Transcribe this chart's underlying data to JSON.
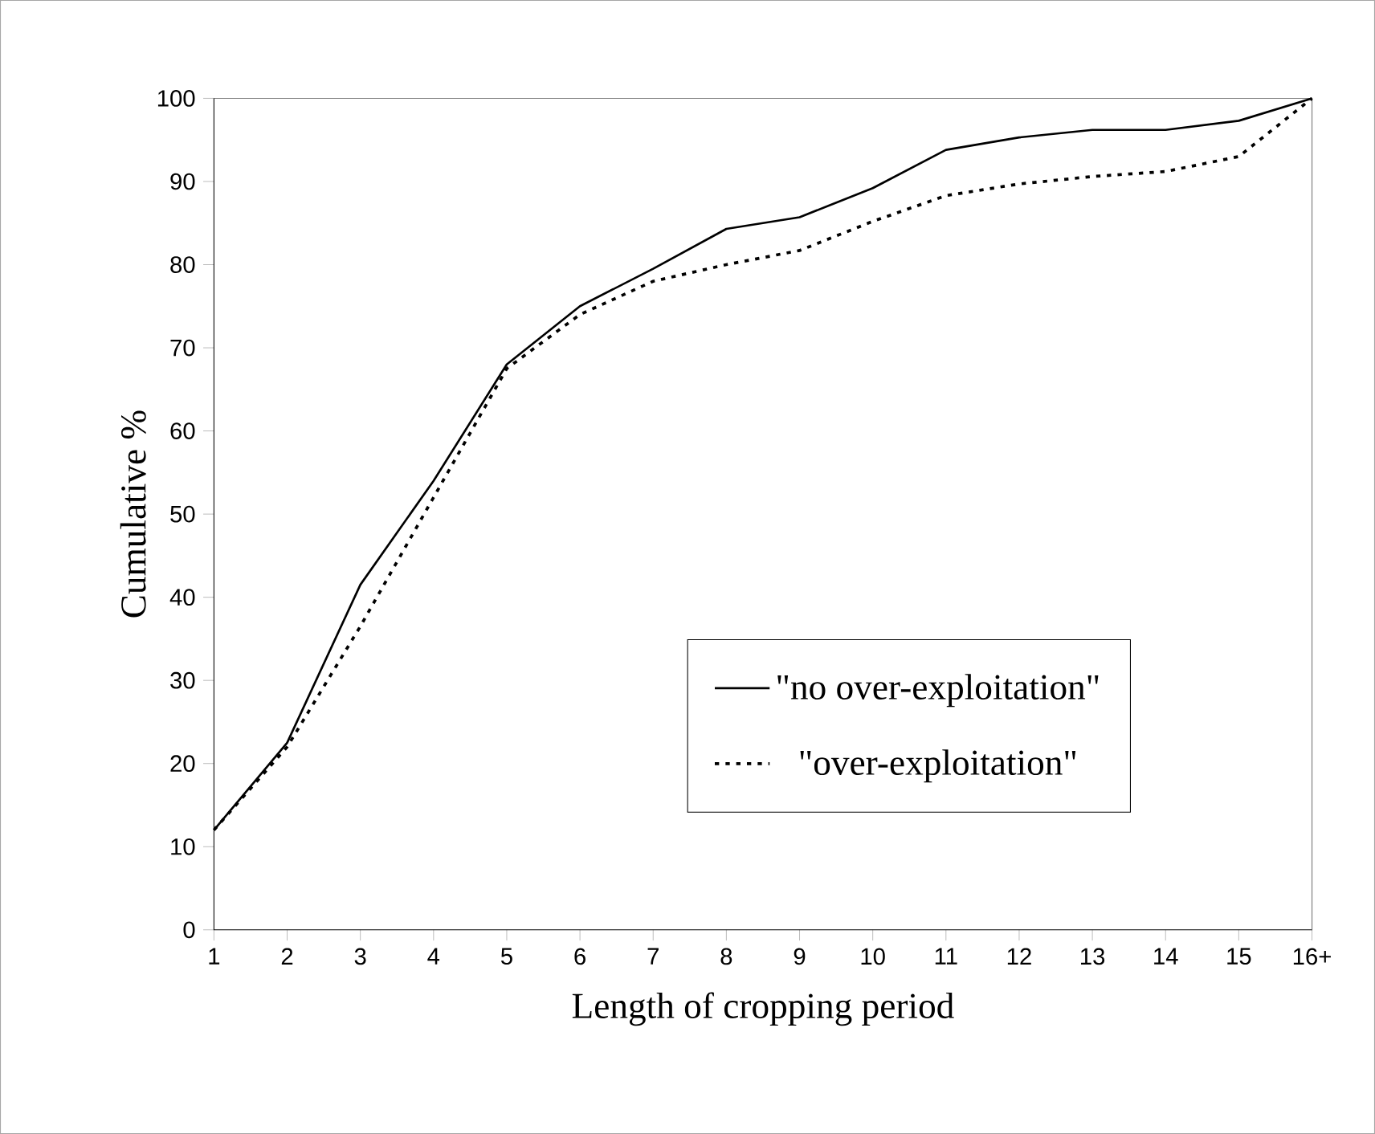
{
  "chart_data": {
    "type": "line",
    "xlabel": "Length of cropping period",
    "ylabel": "Cumulative %",
    "categories": [
      "1",
      "2",
      "3",
      "4",
      "5",
      "6",
      "7",
      "8",
      "9",
      "10",
      "11",
      "12",
      "13",
      "14",
      "15",
      "16+"
    ],
    "ylim": [
      0,
      100
    ],
    "yticks": [
      0,
      10,
      20,
      30,
      40,
      50,
      60,
      70,
      80,
      90,
      100
    ],
    "grid": false,
    "legend": "bottom right",
    "marker": "none",
    "series": [
      {
        "name": "\"no over-exploitation\"",
        "color": "#000000",
        "line_style": "solid",
        "values": [
          12,
          22.5,
          41.5,
          54,
          68,
          75,
          79.5,
          84.3,
          85.7,
          89.2,
          93.8,
          95.3,
          96.2,
          96.2,
          97.3,
          100
        ]
      },
      {
        "name": "\"over-exploitation\"",
        "color": "#000000",
        "line_style": "dotted",
        "values": [
          12,
          22,
          36.5,
          52,
          67.5,
          74,
          78,
          80,
          81.7,
          85.2,
          88.3,
          89.7,
          90.6,
          91.2,
          93,
          100
        ]
      }
    ]
  }
}
